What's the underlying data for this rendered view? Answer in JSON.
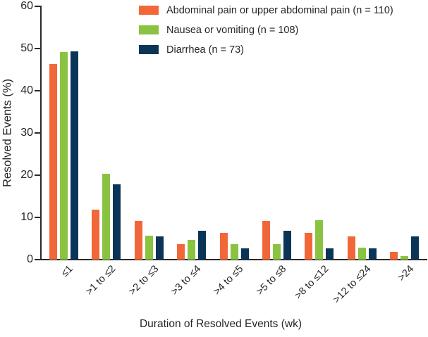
{
  "chart_data": {
    "type": "bar",
    "title": "",
    "xlabel": "Duration of Resolved Events (wk)",
    "ylabel": "Resolved Events (%)",
    "ylim": [
      0,
      60
    ],
    "yticks": [
      "0",
      "10",
      "20",
      "30",
      "40",
      "50",
      "60"
    ],
    "grid": false,
    "legend_position": "top-center",
    "categories": [
      "≤1",
      ">1 to ≤2",
      ">2 to ≤3",
      ">3 to ≤4",
      ">4 to ≤5",
      ">5 to ≤8",
      ">8 to ≤12",
      ">12 to ≤24",
      ">24"
    ],
    "series": [
      {
        "key": "abdominal-pain",
        "name": "Abdominal pain or upper abdominal pain (n = 110)",
        "color": "#F26739",
        "values": [
          46.4,
          11.8,
          9.1,
          3.6,
          6.4,
          9.1,
          6.4,
          5.5,
          1.8
        ]
      },
      {
        "key": "nausea-vomiting",
        "name": "Nausea or vomiting (n = 108)",
        "color": "#8AC341",
        "values": [
          49.1,
          20.4,
          5.6,
          4.6,
          3.7,
          3.7,
          9.3,
          2.8,
          0.9
        ]
      },
      {
        "key": "diarrhea",
        "name": "Diarrhea (n = 73)",
        "color": "#0B3556",
        "values": [
          49.3,
          17.8,
          5.5,
          6.8,
          2.7,
          6.8,
          2.7,
          2.7,
          5.5
        ]
      }
    ]
  }
}
